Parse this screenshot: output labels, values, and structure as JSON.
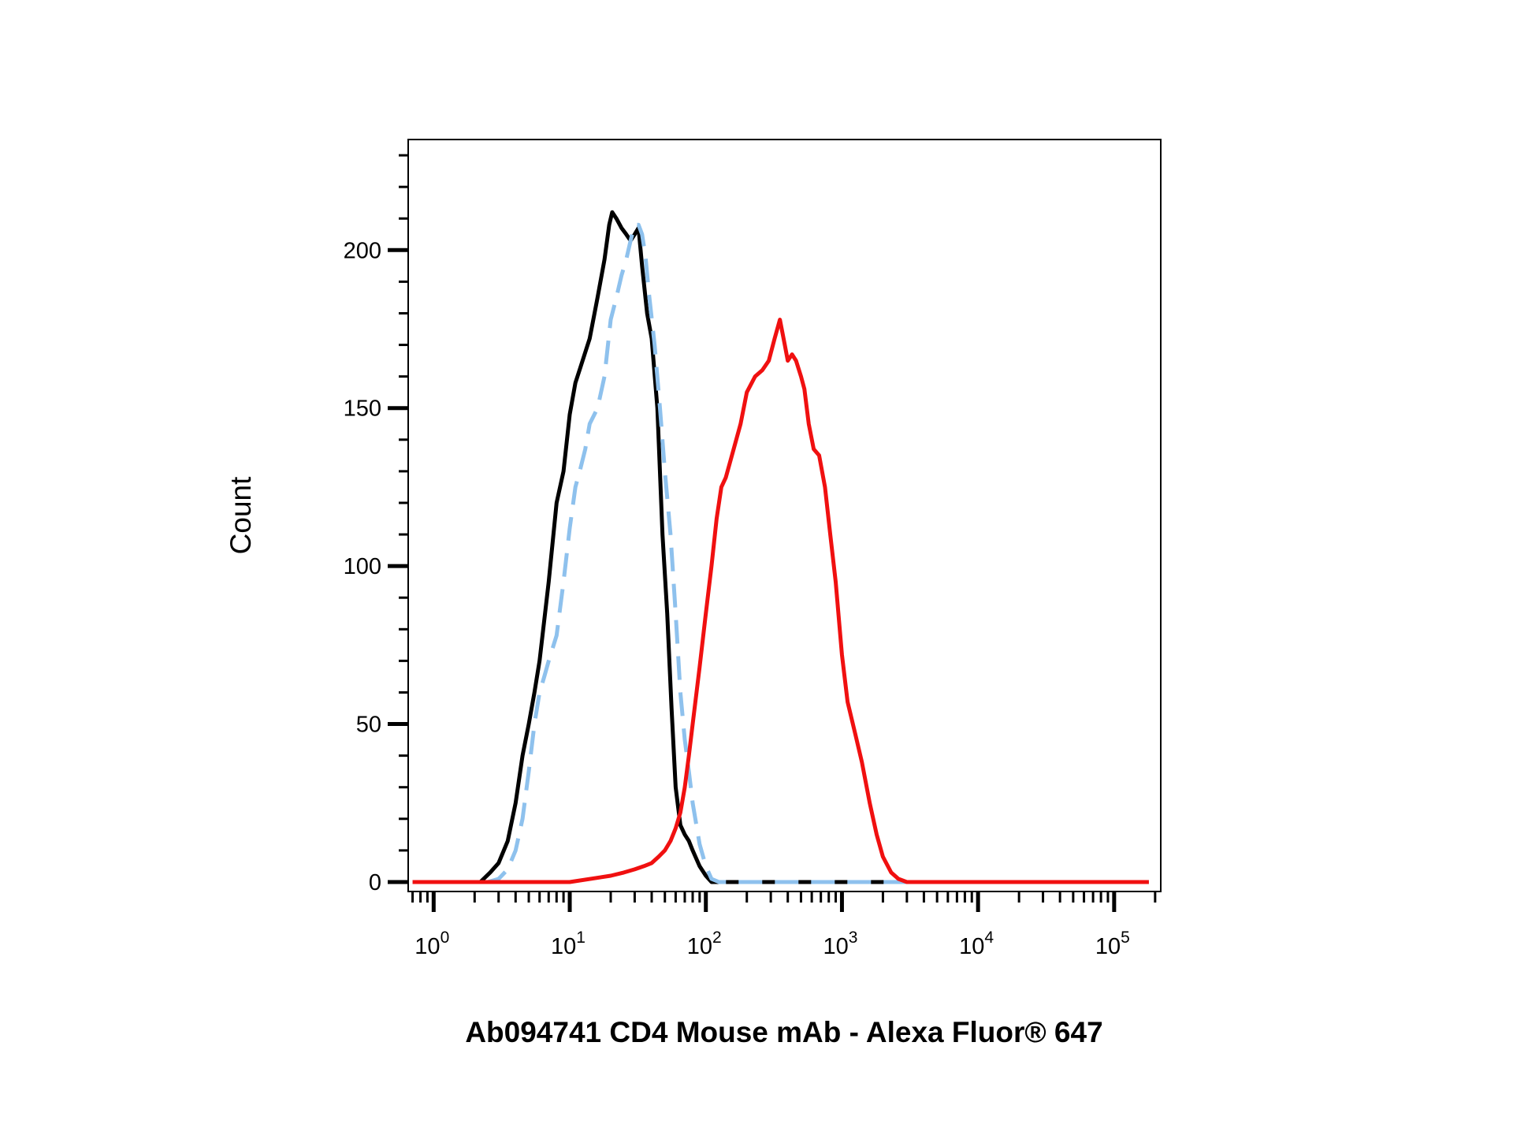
{
  "chart_data": {
    "type": "line",
    "title": "",
    "xlabel": "Ab094741 CD4 Mouse mAb - Alexa Fluor® 647",
    "ylabel": "Count",
    "x_scale": "log",
    "xlim": [
      0.65,
      220000
    ],
    "ylim": [
      -3,
      235
    ],
    "grid": false,
    "legend": "none",
    "y_ticks": [
      "0",
      "50",
      "100",
      "150",
      "200"
    ],
    "x_ticks": [
      {
        "base": "10",
        "exp": "0"
      },
      {
        "base": "10",
        "exp": "1"
      },
      {
        "base": "10",
        "exp": "2"
      },
      {
        "base": "10",
        "exp": "3"
      },
      {
        "base": "10",
        "exp": "4"
      },
      {
        "base": "10",
        "exp": "5"
      }
    ],
    "series": [
      {
        "color": "#000000",
        "style": "solid",
        "x": [
          0.7,
          2.2,
          2.6,
          3.0,
          3.5,
          4.0,
          4.5,
          5.0,
          5.5,
          6.0,
          7.0,
          8.0,
          9.0,
          10.0,
          11.0,
          12.0,
          14.0,
          16.0,
          18.0,
          19.5,
          20.5,
          22.0,
          24.0,
          26.0,
          28.0,
          30.0,
          32.0,
          34.0,
          37.0,
          40.0,
          44.0,
          48.0,
          52.0,
          56.0,
          60.0,
          65.0,
          70.0,
          75.0,
          80.0,
          90.0,
          100.0,
          110.0,
          125.0,
          140.0,
          160.0,
          180.0,
          200.0,
          300.0,
          500.0,
          1000.0,
          3000.0,
          10000.0,
          100000.0,
          180000.0
        ],
        "y": [
          0,
          0,
          3,
          6,
          13,
          25,
          40,
          50,
          60,
          70,
          95,
          120,
          130,
          148,
          158,
          163,
          172,
          185,
          197,
          208,
          212,
          210,
          207,
          205,
          203,
          205,
          207,
          195,
          180,
          172,
          150,
          110,
          85,
          55,
          30,
          18,
          15,
          13,
          10,
          5,
          2,
          0,
          0,
          0,
          0,
          0,
          0,
          0,
          0,
          0,
          0,
          0,
          0,
          0
        ]
      },
      {
        "color": "#8ec1ed",
        "style": "dashed",
        "x": [
          0.7,
          2.5,
          3.0,
          3.5,
          4.0,
          4.5,
          5.0,
          5.5,
          6.0,
          6.5,
          7.0,
          8.0,
          9.0,
          10.0,
          11.0,
          12.0,
          13.0,
          14.0,
          16.0,
          18.0,
          20.0,
          22.0,
          24.0,
          26.0,
          28.0,
          30.0,
          32.0,
          34.0,
          36.0,
          38.0,
          42.0,
          46.0,
          50.0,
          55.0,
          60.0,
          65.0,
          70.0,
          75.0,
          80.0,
          90.0,
          100.0,
          110.0,
          125.0,
          140.0,
          160.0,
          180.0,
          200.0,
          300.0,
          500.0,
          1000.0,
          3000.0,
          10000.0,
          100000.0,
          180000.0
        ],
        "y": [
          0,
          0,
          1,
          4,
          10,
          20,
          35,
          50,
          60,
          65,
          70,
          78,
          95,
          112,
          125,
          131,
          137,
          145,
          150,
          160,
          178,
          185,
          192,
          197,
          203,
          208,
          208,
          205,
          198,
          187,
          170,
          150,
          130,
          110,
          85,
          60,
          45,
          35,
          25,
          12,
          5,
          1,
          0,
          0,
          0,
          0,
          0,
          0,
          0,
          0,
          0,
          0,
          0,
          0
        ]
      },
      {
        "color": "#f01010",
        "style": "solid",
        "x": [
          0.7,
          10.0,
          20.0,
          25.0,
          30.0,
          35.0,
          40.0,
          45.0,
          50.0,
          55.0,
          60.0,
          65.0,
          70.0,
          75.0,
          80.0,
          90.0,
          100.0,
          110.0,
          120.0,
          130.0,
          140.0,
          160.0,
          180.0,
          200.0,
          230.0,
          260.0,
          290.0,
          320.0,
          350.0,
          380.0,
          400.0,
          430.0,
          460.0,
          500.0,
          530.0,
          570.0,
          620.0,
          680.0,
          750.0,
          820.0,
          900.0,
          1000.0,
          1100.0,
          1250.0,
          1400.0,
          1600.0,
          1800.0,
          2000.0,
          2300.0,
          2600.0,
          3000.0,
          3500.0,
          4000.0,
          4500.0,
          5000.0,
          10000.0,
          100000.0,
          180000.0
        ],
        "y": [
          0,
          0,
          2,
          3,
          4,
          5,
          6,
          8,
          10,
          13,
          17,
          22,
          30,
          40,
          50,
          68,
          85,
          100,
          115,
          125,
          128,
          137,
          145,
          155,
          160,
          162,
          165,
          172,
          178,
          170,
          165,
          167,
          165,
          160,
          156,
          145,
          137,
          135,
          125,
          110,
          95,
          72,
          57,
          47,
          38,
          25,
          15,
          8,
          3,
          1,
          0,
          0,
          0,
          0,
          0,
          0,
          0,
          0
        ]
      }
    ]
  }
}
